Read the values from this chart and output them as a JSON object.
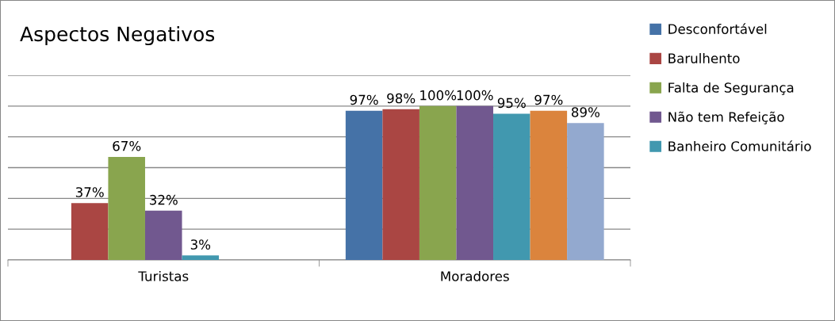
{
  "chart_data": {
    "type": "bar",
    "title": "Aspectos Negativos",
    "categories": [
      "Turistas",
      "Moradores"
    ],
    "series": [
      {
        "name": "Desconfortável",
        "color": "#4572a7",
        "values": [
          null,
          97
        ],
        "value_labels": [
          null,
          "97%"
        ]
      },
      {
        "name": "Barulhento",
        "color": "#aa4643",
        "values": [
          37,
          98
        ],
        "value_labels": [
          "37%",
          "98%"
        ]
      },
      {
        "name": "Falta de Segurança",
        "color": "#89a54e",
        "values": [
          67,
          100
        ],
        "value_labels": [
          "67%",
          "100%"
        ]
      },
      {
        "name": "Não tem Refeição",
        "color": "#71588f",
        "values": [
          32,
          100
        ],
        "value_labels": [
          "32%",
          "100%"
        ]
      },
      {
        "name": "Banheiro Comunitário",
        "color": "#4198af",
        "values": [
          3,
          95
        ],
        "value_labels": [
          "3%",
          "95%"
        ]
      },
      {
        "color": "#db843d",
        "values": [
          null,
          97
        ],
        "value_labels": [
          null,
          "97%"
        ]
      },
      {
        "color": "#93a9cf",
        "values": [
          null,
          89
        ],
        "value_labels": [
          null,
          "89%"
        ]
      }
    ],
    "ylim": [
      0,
      120
    ],
    "yticks": [
      {
        "value": 0,
        "label": null
      },
      {
        "value": 20,
        "label": null
      },
      {
        "value": 40,
        "label": null
      },
      {
        "value": 60,
        "label": null
      },
      {
        "value": 80,
        "label": null
      },
      {
        "value": 100,
        "label": null
      },
      {
        "value": 120,
        "label": null
      }
    ],
    "tick_labels": "x",
    "grid": "y",
    "legend": "right"
  }
}
